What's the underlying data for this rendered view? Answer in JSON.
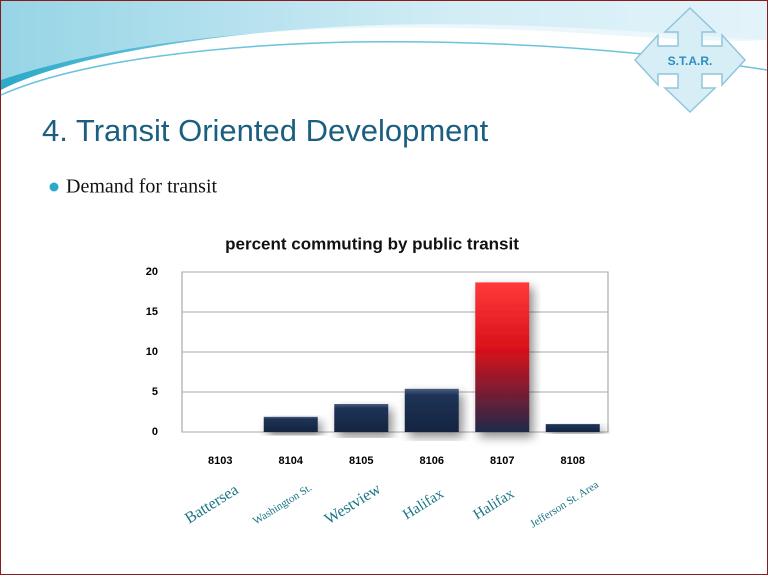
{
  "slide": {
    "logo": "S.T.A.R.",
    "title": "4. Transit Oriented Development",
    "bullet": "Demand for transit"
  },
  "chart_data": {
    "type": "bar",
    "title": "percent commuting by public transit",
    "categories": [
      "8103",
      "8104",
      "8105",
      "8106",
      "8107",
      "8108"
    ],
    "values": [
      0,
      1.9,
      3.5,
      5.4,
      18.7,
      1.0
    ],
    "colors": [
      "navy",
      "navy",
      "navy",
      "navy",
      "red",
      "navy"
    ],
    "annotations": [
      "Battersea",
      "Washington St.",
      "Westview",
      "Halifax",
      "Halifax",
      "Jefferson St. Area"
    ],
    "ylim": [
      0,
      20
    ],
    "yticks": [
      0,
      5,
      10,
      15,
      20
    ],
    "grid": true
  }
}
